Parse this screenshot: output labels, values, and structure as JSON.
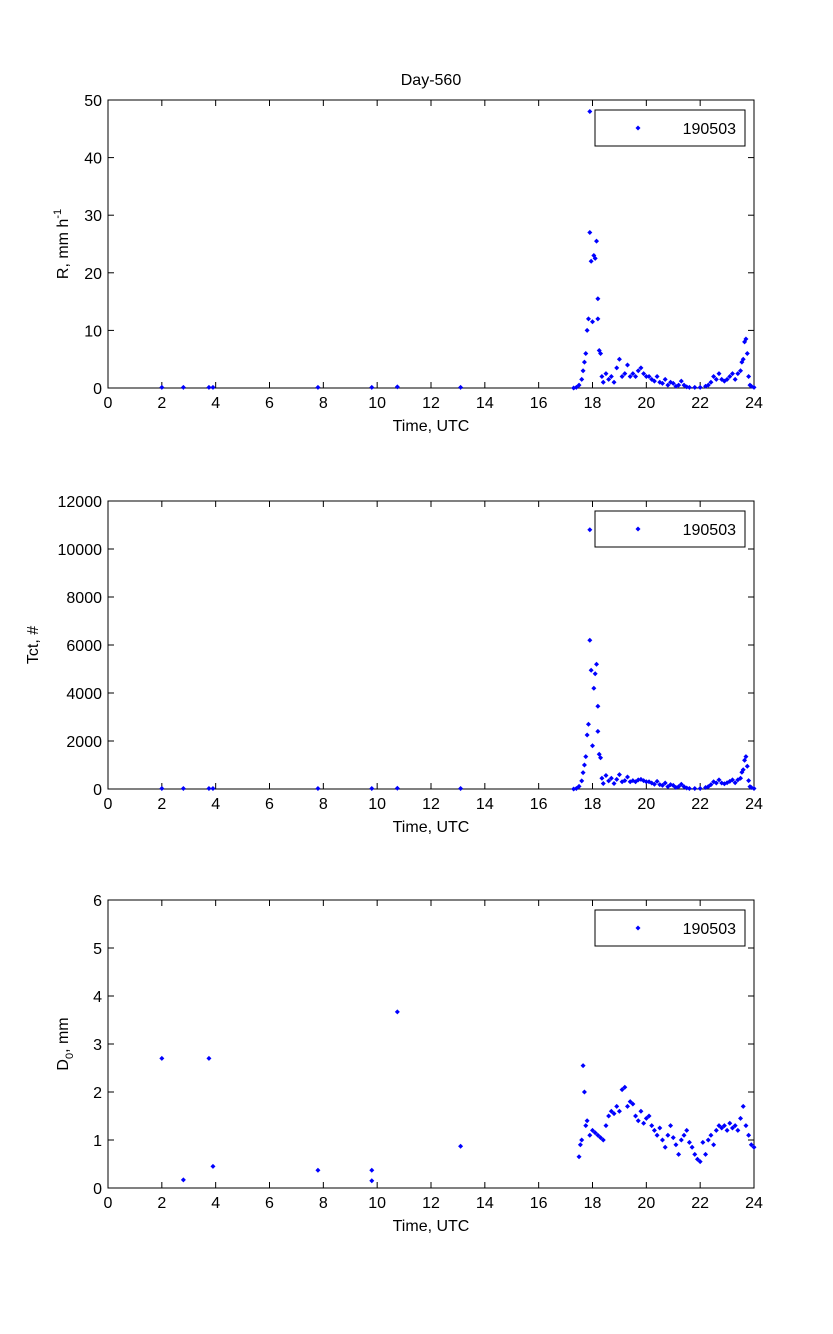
{
  "chart_data": [
    {
      "type": "scatter",
      "title": "Day-560",
      "xlabel": "Time, UTC",
      "ylabel": "R, mm h",
      "ylabel_sup": "-1",
      "xlim": [
        0,
        24
      ],
      "ylim": [
        0,
        50
      ],
      "xticks": [
        "0",
        "2",
        "4",
        "6",
        "8",
        "10",
        "12",
        "14",
        "16",
        "18",
        "20",
        "22",
        "24"
      ],
      "yticks": [
        "0",
        "10",
        "20",
        "30",
        "40",
        "50"
      ],
      "legend": "190503",
      "legend_position": "top-right",
      "color": "#0000ff",
      "points": [
        [
          2.0,
          0.1
        ],
        [
          2.8,
          0.1
        ],
        [
          3.75,
          0.1
        ],
        [
          3.9,
          0.1
        ],
        [
          7.8,
          0.1
        ],
        [
          9.8,
          0.1
        ],
        [
          10.75,
          0.2
        ],
        [
          13.1,
          0.1
        ],
        [
          17.3,
          0
        ],
        [
          17.4,
          0.1
        ],
        [
          17.5,
          0.5
        ],
        [
          17.6,
          1.5
        ],
        [
          17.65,
          3
        ],
        [
          17.7,
          4.5
        ],
        [
          17.75,
          6
        ],
        [
          17.8,
          10
        ],
        [
          17.85,
          12
        ],
        [
          17.9,
          27
        ],
        [
          17.95,
          22
        ],
        [
          17.9,
          48
        ],
        [
          18.0,
          11.5
        ],
        [
          18.05,
          23
        ],
        [
          18.1,
          22.5
        ],
        [
          18.15,
          25.5
        ],
        [
          18.2,
          15.5
        ],
        [
          18.2,
          12
        ],
        [
          18.25,
          6.5
        ],
        [
          18.3,
          6
        ],
        [
          18.35,
          2
        ],
        [
          18.4,
          1
        ],
        [
          18.5,
          2.5
        ],
        [
          18.6,
          1.5
        ],
        [
          18.7,
          2
        ],
        [
          18.8,
          1
        ],
        [
          18.9,
          3.5
        ],
        [
          19.0,
          5
        ],
        [
          19.1,
          2
        ],
        [
          19.2,
          2.5
        ],
        [
          19.3,
          4
        ],
        [
          19.4,
          2
        ],
        [
          19.5,
          2.5
        ],
        [
          19.6,
          2
        ],
        [
          19.7,
          3
        ],
        [
          19.8,
          3.5
        ],
        [
          19.9,
          2.5
        ],
        [
          20.0,
          2
        ],
        [
          20.1,
          2
        ],
        [
          20.2,
          1.5
        ],
        [
          20.3,
          1.2
        ],
        [
          20.4,
          2
        ],
        [
          20.5,
          1
        ],
        [
          20.6,
          0.8
        ],
        [
          20.7,
          1.5
        ],
        [
          20.8,
          0.5
        ],
        [
          20.9,
          1
        ],
        [
          21.0,
          0.8
        ],
        [
          21.1,
          0.3
        ],
        [
          21.2,
          0.5
        ],
        [
          21.3,
          1.2
        ],
        [
          21.4,
          0.5
        ],
        [
          21.5,
          0.2
        ],
        [
          21.6,
          0.1
        ],
        [
          21.8,
          0.1
        ],
        [
          22.0,
          0.1
        ],
        [
          22.2,
          0.3
        ],
        [
          22.3,
          0.5
        ],
        [
          22.4,
          1
        ],
        [
          22.5,
          2
        ],
        [
          22.6,
          1.5
        ],
        [
          22.7,
          2.5
        ],
        [
          22.8,
          1.5
        ],
        [
          22.9,
          1.2
        ],
        [
          23.0,
          1.5
        ],
        [
          23.1,
          2
        ],
        [
          23.2,
          2.5
        ],
        [
          23.3,
          1.5
        ],
        [
          23.4,
          2.5
        ],
        [
          23.5,
          3
        ],
        [
          23.55,
          4.5
        ],
        [
          23.6,
          5
        ],
        [
          23.65,
          8
        ],
        [
          23.7,
          8.5
        ],
        [
          23.75,
          6
        ],
        [
          23.8,
          2
        ],
        [
          23.85,
          0.5
        ],
        [
          23.9,
          0.3
        ],
        [
          24.0,
          0.1
        ]
      ]
    },
    {
      "type": "scatter",
      "title": "",
      "xlabel": "Time, UTC",
      "ylabel": "Tct, #",
      "ylabel_sup": "",
      "xlim": [
        0,
        24
      ],
      "ylim": [
        0,
        12000
      ],
      "xticks": [
        "0",
        "2",
        "4",
        "6",
        "8",
        "10",
        "12",
        "14",
        "16",
        "18",
        "20",
        "22",
        "24"
      ],
      "yticks": [
        "0",
        "2000",
        "4000",
        "6000",
        "8000",
        "10000",
        "12000"
      ],
      "legend": "190503",
      "legend_position": "top-right",
      "color": "#0000ff",
      "points": [
        [
          2.0,
          20
        ],
        [
          2.8,
          20
        ],
        [
          3.75,
          20
        ],
        [
          3.9,
          20
        ],
        [
          7.8,
          20
        ],
        [
          9.8,
          20
        ],
        [
          10.75,
          30
        ],
        [
          13.1,
          20
        ],
        [
          17.3,
          0
        ],
        [
          17.4,
          20
        ],
        [
          17.5,
          110
        ],
        [
          17.6,
          340
        ],
        [
          17.65,
          680
        ],
        [
          17.7,
          1000
        ],
        [
          17.75,
          1350
        ],
        [
          17.8,
          2250
        ],
        [
          17.85,
          2700
        ],
        [
          17.9,
          6200
        ],
        [
          17.95,
          4950
        ],
        [
          17.9,
          10800
        ],
        [
          18.0,
          1800
        ],
        [
          18.05,
          4200
        ],
        [
          18.1,
          4800
        ],
        [
          18.15,
          5200
        ],
        [
          18.2,
          3450
        ],
        [
          18.2,
          2400
        ],
        [
          18.25,
          1450
        ],
        [
          18.3,
          1300
        ],
        [
          18.35,
          450
        ],
        [
          18.4,
          230
        ],
        [
          18.5,
          560
        ],
        [
          18.6,
          340
        ],
        [
          18.7,
          450
        ],
        [
          18.8,
          230
        ],
        [
          18.9,
          400
        ],
        [
          19.0,
          600
        ],
        [
          19.1,
          300
        ],
        [
          19.2,
          350
        ],
        [
          19.3,
          500
        ],
        [
          19.4,
          300
        ],
        [
          19.5,
          350
        ],
        [
          19.6,
          300
        ],
        [
          19.7,
          380
        ],
        [
          19.8,
          400
        ],
        [
          19.9,
          350
        ],
        [
          20.0,
          300
        ],
        [
          20.1,
          300
        ],
        [
          20.2,
          250
        ],
        [
          20.3,
          200
        ],
        [
          20.4,
          320
        ],
        [
          20.5,
          180
        ],
        [
          20.6,
          150
        ],
        [
          20.7,
          250
        ],
        [
          20.8,
          100
        ],
        [
          20.9,
          180
        ],
        [
          21.0,
          150
        ],
        [
          21.1,
          60
        ],
        [
          21.2,
          100
        ],
        [
          21.3,
          200
        ],
        [
          21.4,
          100
        ],
        [
          21.5,
          40
        ],
        [
          21.6,
          20
        ],
        [
          21.8,
          20
        ],
        [
          22.0,
          20
        ],
        [
          22.2,
          60
        ],
        [
          22.3,
          100
        ],
        [
          22.4,
          180
        ],
        [
          22.5,
          300
        ],
        [
          22.6,
          250
        ],
        [
          22.7,
          380
        ],
        [
          22.8,
          250
        ],
        [
          22.9,
          220
        ],
        [
          23.0,
          260
        ],
        [
          23.1,
          320
        ],
        [
          23.2,
          380
        ],
        [
          23.3,
          260
        ],
        [
          23.4,
          380
        ],
        [
          23.5,
          450
        ],
        [
          23.55,
          700
        ],
        [
          23.6,
          800
        ],
        [
          23.65,
          1200
        ],
        [
          23.7,
          1350
        ],
        [
          23.75,
          950
        ],
        [
          23.8,
          350
        ],
        [
          23.85,
          100
        ],
        [
          23.9,
          60
        ],
        [
          24.0,
          20
        ]
      ]
    },
    {
      "type": "scatter",
      "title": "",
      "xlabel": "Time, UTC",
      "ylabel": "D",
      "ylabel_sub": "0",
      "ylabel_rest": ", mm",
      "xlim": [
        0,
        24
      ],
      "ylim": [
        0,
        6
      ],
      "xticks": [
        "0",
        "2",
        "4",
        "6",
        "8",
        "10",
        "12",
        "14",
        "16",
        "18",
        "20",
        "22",
        "24"
      ],
      "yticks": [
        "0",
        "1",
        "2",
        "3",
        "4",
        "5",
        "6"
      ],
      "legend": "190503",
      "legend_position": "top-right",
      "color": "#0000ff",
      "points": [
        [
          2.0,
          2.7
        ],
        [
          2.8,
          0.17
        ],
        [
          3.75,
          2.7
        ],
        [
          3.9,
          0.45
        ],
        [
          7.8,
          0.37
        ],
        [
          9.8,
          0.15
        ],
        [
          9.8,
          0.37
        ],
        [
          10.75,
          3.67
        ],
        [
          13.1,
          0.87
        ],
        [
          17.5,
          0.65
        ],
        [
          17.55,
          0.9
        ],
        [
          17.6,
          1.0
        ],
        [
          17.65,
          2.55
        ],
        [
          17.7,
          2.0
        ],
        [
          17.75,
          1.3
        ],
        [
          17.8,
          1.4
        ],
        [
          17.9,
          1.1
        ],
        [
          18.0,
          1.2
        ],
        [
          18.1,
          1.15
        ],
        [
          18.2,
          1.1
        ],
        [
          18.3,
          1.05
        ],
        [
          18.4,
          1.0
        ],
        [
          18.5,
          1.3
        ],
        [
          18.6,
          1.5
        ],
        [
          18.7,
          1.6
        ],
        [
          18.8,
          1.55
        ],
        [
          18.9,
          1.7
        ],
        [
          19.0,
          1.6
        ],
        [
          19.1,
          2.05
        ],
        [
          19.2,
          2.1
        ],
        [
          19.3,
          1.7
        ],
        [
          19.4,
          1.8
        ],
        [
          19.5,
          1.75
        ],
        [
          19.6,
          1.5
        ],
        [
          19.7,
          1.4
        ],
        [
          19.8,
          1.6
        ],
        [
          19.9,
          1.35
        ],
        [
          20.0,
          1.45
        ],
        [
          20.1,
          1.5
        ],
        [
          20.2,
          1.3
        ],
        [
          20.3,
          1.2
        ],
        [
          20.4,
          1.1
        ],
        [
          20.5,
          1.25
        ],
        [
          20.6,
          1.0
        ],
        [
          20.7,
          0.85
        ],
        [
          20.8,
          1.1
        ],
        [
          20.9,
          1.3
        ],
        [
          21.0,
          1.05
        ],
        [
          21.1,
          0.9
        ],
        [
          21.2,
          0.7
        ],
        [
          21.3,
          1.0
        ],
        [
          21.4,
          1.1
        ],
        [
          21.5,
          1.2
        ],
        [
          21.6,
          0.95
        ],
        [
          21.7,
          0.85
        ],
        [
          21.8,
          0.7
        ],
        [
          21.9,
          0.6
        ],
        [
          22.0,
          0.55
        ],
        [
          22.1,
          0.95
        ],
        [
          22.2,
          0.7
        ],
        [
          22.3,
          1.0
        ],
        [
          22.4,
          1.1
        ],
        [
          22.5,
          0.9
        ],
        [
          22.6,
          1.2
        ],
        [
          22.7,
          1.3
        ],
        [
          22.8,
          1.25
        ],
        [
          22.9,
          1.3
        ],
        [
          23.0,
          1.2
        ],
        [
          23.1,
          1.35
        ],
        [
          23.2,
          1.25
        ],
        [
          23.3,
          1.3
        ],
        [
          23.4,
          1.2
        ],
        [
          23.5,
          1.45
        ],
        [
          23.6,
          1.7
        ],
        [
          23.7,
          1.3
        ],
        [
          23.8,
          1.1
        ],
        [
          23.9,
          0.9
        ],
        [
          24.0,
          0.85
        ]
      ]
    }
  ]
}
